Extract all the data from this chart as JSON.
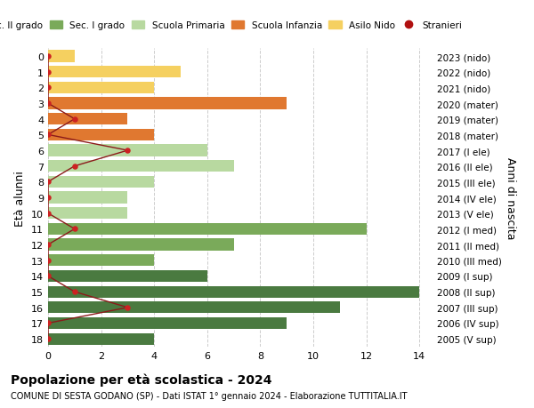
{
  "ages": [
    18,
    17,
    16,
    15,
    14,
    13,
    12,
    11,
    10,
    9,
    8,
    7,
    6,
    5,
    4,
    3,
    2,
    1,
    0
  ],
  "years": [
    "2005 (V sup)",
    "2006 (IV sup)",
    "2007 (III sup)",
    "2008 (II sup)",
    "2009 (I sup)",
    "2010 (III med)",
    "2011 (II med)",
    "2012 (I med)",
    "2013 (V ele)",
    "2014 (IV ele)",
    "2015 (III ele)",
    "2016 (II ele)",
    "2017 (I ele)",
    "2018 (mater)",
    "2019 (mater)",
    "2020 (mater)",
    "2021 (nido)",
    "2022 (nido)",
    "2023 (nido)"
  ],
  "bar_values": [
    4,
    9,
    11,
    14,
    6,
    4,
    7,
    12,
    3,
    3,
    4,
    7,
    6,
    4,
    3,
    9,
    4,
    5,
    1
  ],
  "bar_colors": [
    "#4a7a40",
    "#4a7a40",
    "#4a7a40",
    "#4a7a40",
    "#4a7a40",
    "#7aaa5a",
    "#7aaa5a",
    "#7aaa5a",
    "#b8d9a0",
    "#b8d9a0",
    "#b8d9a0",
    "#b8d9a0",
    "#b8d9a0",
    "#e07830",
    "#e07830",
    "#e07830",
    "#f5d060",
    "#f5d060",
    "#f5d060"
  ],
  "stranieri_x": [
    0,
    0,
    3,
    1,
    0,
    0,
    0,
    1,
    0,
    0,
    0,
    1,
    3,
    0,
    1,
    0,
    0,
    0,
    0
  ],
  "legend_labels": [
    "Sec. II grado",
    "Sec. I grado",
    "Scuola Primaria",
    "Scuola Infanzia",
    "Asilo Nido",
    "Stranieri"
  ],
  "legend_colors": [
    "#4a7a40",
    "#7aaa5a",
    "#b8d9a0",
    "#e07830",
    "#f5d060",
    "#b01010"
  ],
  "ylabel_left": "Età alunni",
  "ylabel_right": "Anni di nascita",
  "title": "Popolazione per età scolastica - 2024",
  "subtitle": "COMUNE DI SESTA GODANO (SP) - Dati ISTAT 1° gennaio 2024 - Elaborazione TUTTITALIA.IT",
  "xlim": [
    0,
    14.5
  ],
  "ylim_min": -0.5,
  "ylim_max": 18.5,
  "bg_color": "#ffffff",
  "grid_color": "#cccccc",
  "stranieri_line_color": "#8b1a1a",
  "stranieri_dot_color": "#cc2222"
}
